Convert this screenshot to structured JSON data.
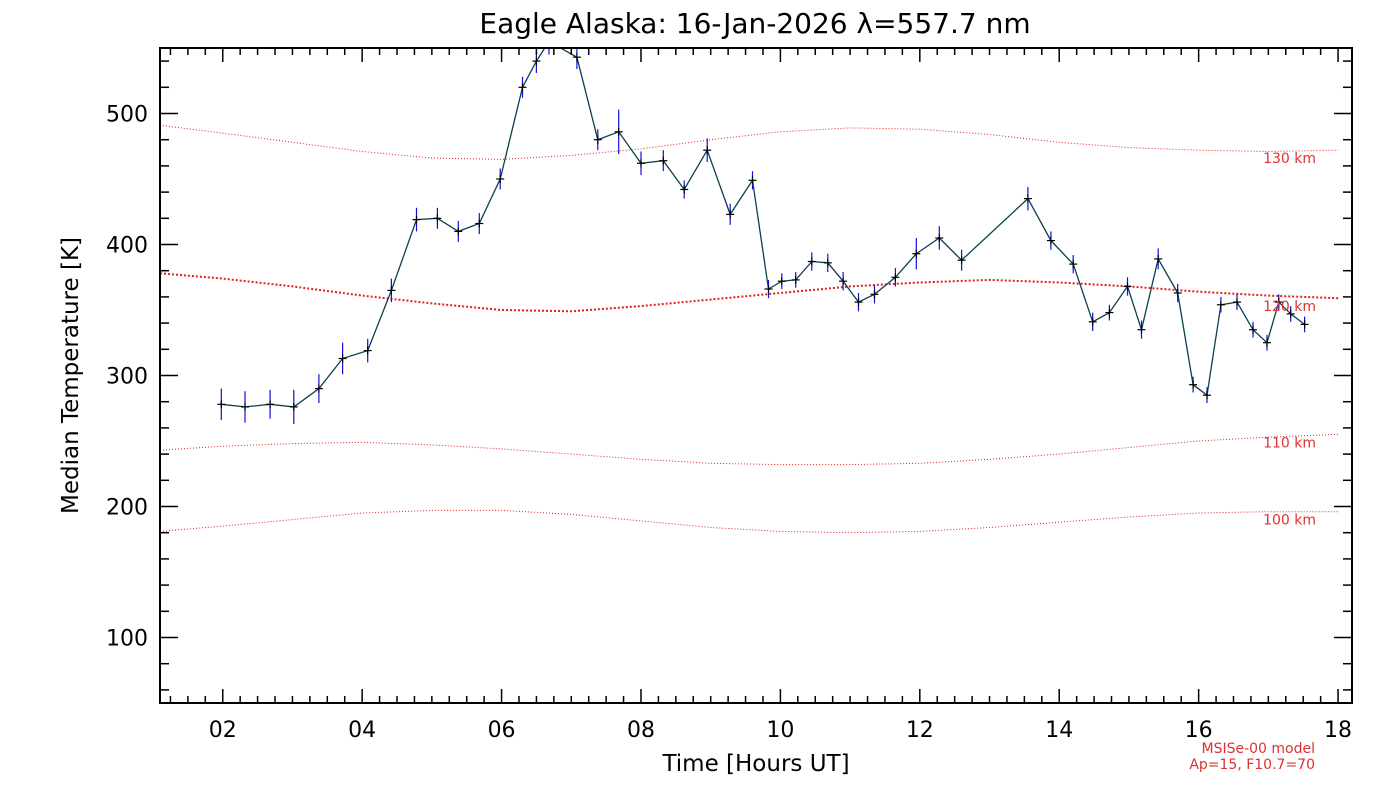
{
  "chart_data": {
    "type": "line",
    "title": "Eagle Alaska: 16-Jan-2026 λ=557.7 nm",
    "xlabel": "Time [Hours UT]",
    "ylabel": "Median Temperature [K]",
    "xlim": [
      1.1,
      18.2
    ],
    "ylim": [
      50,
      550
    ],
    "x_ticks": [
      2,
      4,
      6,
      8,
      10,
      12,
      14,
      16,
      18
    ],
    "x_tick_labels": [
      "02",
      "04",
      "06",
      "08",
      "10",
      "12",
      "14",
      "16",
      "18"
    ],
    "y_ticks": [
      100,
      200,
      300,
      400,
      500
    ],
    "y_tick_labels": [
      "100",
      "200",
      "300",
      "400",
      "500"
    ],
    "grid": false,
    "colors": {
      "line": "#0b4050",
      "marker": "#000000",
      "error_bar": "#1010e0",
      "model": "#e02020",
      "note": "#e03030"
    },
    "series": [
      {
        "x": [
          1.98,
          2.32,
          2.68,
          3.02,
          3.38,
          3.72,
          4.08,
          4.42,
          4.78,
          5.08,
          5.38,
          5.68,
          5.98,
          6.3,
          6.5,
          6.68,
          7.08,
          7.38,
          7.68,
          8.0,
          8.32,
          8.62,
          8.95,
          9.28,
          9.6,
          9.83,
          10.02,
          10.22,
          10.45,
          10.68,
          10.9,
          11.12,
          11.35,
          11.65,
          11.95,
          12.28,
          12.6,
          13.55,
          13.88,
          14.2,
          14.48,
          14.72,
          14.98,
          15.18,
          15.42,
          15.7,
          15.92,
          16.12,
          16.32,
          16.55,
          16.78,
          16.98,
          17.15,
          17.32,
          17.52
        ],
        "y": [
          278,
          276,
          278,
          276,
          290,
          313,
          319,
          365,
          419,
          420,
          410,
          416,
          450,
          520,
          540,
          555,
          543,
          480,
          486,
          462,
          464,
          442,
          472,
          423,
          449,
          366,
          372,
          373,
          387,
          386,
          372,
          356,
          362,
          375,
          393,
          405,
          388,
          435,
          403,
          385,
          341,
          348,
          368,
          335,
          389,
          363,
          293,
          285,
          354,
          356,
          335,
          325,
          356,
          347,
          339
        ],
        "error": [
          12,
          12,
          11,
          13,
          11,
          12,
          9,
          9,
          9,
          8,
          8,
          8,
          8,
          8,
          9,
          10,
          9,
          8,
          17,
          9,
          8,
          7,
          9,
          8,
          7,
          7,
          6,
          6,
          7,
          7,
          7,
          7,
          7,
          7,
          12,
          9,
          8,
          9,
          7,
          7,
          7,
          6,
          7,
          7,
          8,
          7,
          6,
          6,
          6,
          6,
          6,
          6,
          6,
          6,
          6
        ]
      }
    ],
    "model_curves": [
      {
        "label": "130 km",
        "x": [
          1.1,
          2,
          3,
          4,
          5,
          6,
          7,
          8,
          9,
          10,
          11,
          12,
          13,
          14,
          15,
          16,
          17,
          18
        ],
        "y": [
          491,
          485,
          478,
          471,
          466,
          465,
          468,
          473,
          480,
          486,
          489,
          488,
          484,
          478,
          474,
          472,
          471,
          472
        ]
      },
      {
        "label": "120 km",
        "x": [
          1.1,
          2,
          3,
          4,
          5,
          6,
          7,
          8,
          9,
          10,
          11,
          12,
          13,
          14,
          15,
          16,
          17,
          18
        ],
        "y": [
          378,
          374,
          368,
          361,
          355,
          350,
          349,
          353,
          358,
          363,
          368,
          371,
          373,
          371,
          368,
          364,
          361,
          359
        ]
      },
      {
        "label": "110 km",
        "x": [
          1.1,
          2,
          3,
          4,
          5,
          6,
          7,
          8,
          9,
          10,
          11,
          12,
          13,
          14,
          15,
          16,
          17,
          18
        ],
        "y": [
          243,
          246,
          248,
          249,
          247,
          244,
          240,
          236,
          233,
          232,
          232,
          233,
          236,
          240,
          245,
          250,
          253,
          255
        ]
      },
      {
        "label": "100 km",
        "x": [
          1.1,
          2,
          3,
          4,
          5,
          6,
          7,
          8,
          9,
          10,
          11,
          12,
          13,
          14,
          15,
          16,
          17,
          18
        ],
        "y": [
          181,
          185,
          190,
          195,
          197,
          197,
          194,
          189,
          184,
          181,
          180,
          181,
          184,
          188,
          192,
          195,
          196,
          196
        ]
      }
    ],
    "model_note": [
      "MSISe-00 model",
      "Ap=15, F10.7=70"
    ]
  }
}
